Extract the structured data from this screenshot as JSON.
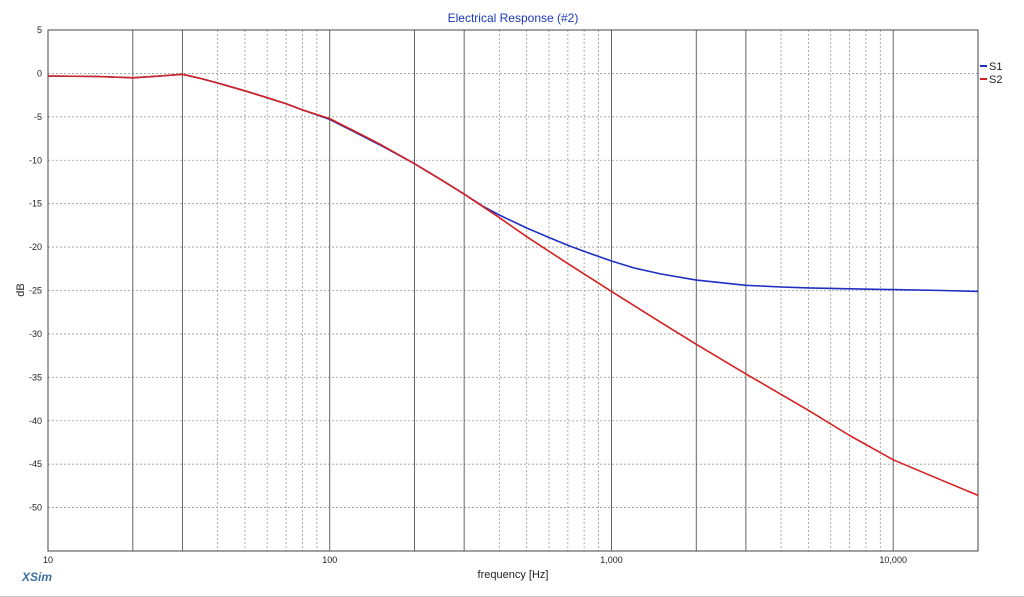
{
  "app": {
    "brand": "XSim"
  },
  "chart_data": {
    "type": "line",
    "title": "Electrical Response (#2)",
    "xlabel": "frequency [Hz]",
    "ylabel": "dB",
    "xscale": "log",
    "xlim": [
      10,
      20000
    ],
    "ylim": [
      -55,
      5
    ],
    "grid": true,
    "legend": "top-right",
    "x_ticks": [
      {
        "value": 10,
        "label": "10"
      },
      {
        "value": 100,
        "label": "100"
      },
      {
        "value": 1000,
        "label": "1,000"
      },
      {
        "value": 10000,
        "label": "10,000"
      }
    ],
    "y_ticks": [
      {
        "value": 5,
        "label": "5"
      },
      {
        "value": 0,
        "label": "0"
      },
      {
        "value": -5,
        "label": "-5"
      },
      {
        "value": -10,
        "label": "-10"
      },
      {
        "value": -15,
        "label": "-15"
      },
      {
        "value": -20,
        "label": "-20"
      },
      {
        "value": -25,
        "label": "-25"
      },
      {
        "value": -30,
        "label": "-30"
      },
      {
        "value": -35,
        "label": "-35"
      },
      {
        "value": -40,
        "label": "-40"
      },
      {
        "value": -45,
        "label": "-45"
      },
      {
        "value": -50,
        "label": "-50"
      }
    ],
    "series": [
      {
        "name": "S1",
        "color": "#1f2fc4",
        "points": [
          [
            10,
            -0.3
          ],
          [
            15,
            -0.35
          ],
          [
            20,
            -0.5
          ],
          [
            25,
            -0.3
          ],
          [
            30,
            -0.1
          ],
          [
            35,
            -0.6
          ],
          [
            40,
            -1.1
          ],
          [
            50,
            -2.0
          ],
          [
            60,
            -2.8
          ],
          [
            70,
            -3.5
          ],
          [
            80,
            -4.2
          ],
          [
            100,
            -5.3
          ],
          [
            120,
            -6.6
          ],
          [
            150,
            -8.2
          ],
          [
            200,
            -10.4
          ],
          [
            250,
            -12.3
          ],
          [
            300,
            -13.9
          ],
          [
            350,
            -15.3
          ],
          [
            400,
            -16.3
          ],
          [
            500,
            -17.8
          ],
          [
            600,
            -18.9
          ],
          [
            700,
            -19.8
          ],
          [
            800,
            -20.5
          ],
          [
            1000,
            -21.6
          ],
          [
            1200,
            -22.4
          ],
          [
            1500,
            -23.1
          ],
          [
            2000,
            -23.8
          ],
          [
            3000,
            -24.4
          ],
          [
            4000,
            -24.6
          ],
          [
            5000,
            -24.7
          ],
          [
            7000,
            -24.8
          ],
          [
            10000,
            -24.9
          ],
          [
            15000,
            -25.0
          ],
          [
            20000,
            -25.1
          ]
        ]
      },
      {
        "name": "S2",
        "color": "#d42020",
        "points": [
          [
            10,
            -0.3
          ],
          [
            15,
            -0.35
          ],
          [
            20,
            -0.5
          ],
          [
            25,
            -0.3
          ],
          [
            30,
            -0.1
          ],
          [
            35,
            -0.6
          ],
          [
            40,
            -1.1
          ],
          [
            50,
            -2.0
          ],
          [
            60,
            -2.8
          ],
          [
            70,
            -3.5
          ],
          [
            80,
            -4.2
          ],
          [
            100,
            -5.2
          ],
          [
            120,
            -6.5
          ],
          [
            150,
            -8.1
          ],
          [
            200,
            -10.4
          ],
          [
            250,
            -12.3
          ],
          [
            300,
            -13.9
          ],
          [
            400,
            -16.6
          ],
          [
            500,
            -18.8
          ],
          [
            700,
            -21.9
          ],
          [
            1000,
            -25.1
          ],
          [
            1500,
            -28.7
          ],
          [
            2000,
            -31.2
          ],
          [
            3000,
            -34.6
          ],
          [
            5000,
            -38.8
          ],
          [
            7000,
            -41.7
          ],
          [
            10000,
            -44.5
          ],
          [
            15000,
            -46.9
          ],
          [
            20000,
            -48.6
          ]
        ]
      }
    ]
  }
}
